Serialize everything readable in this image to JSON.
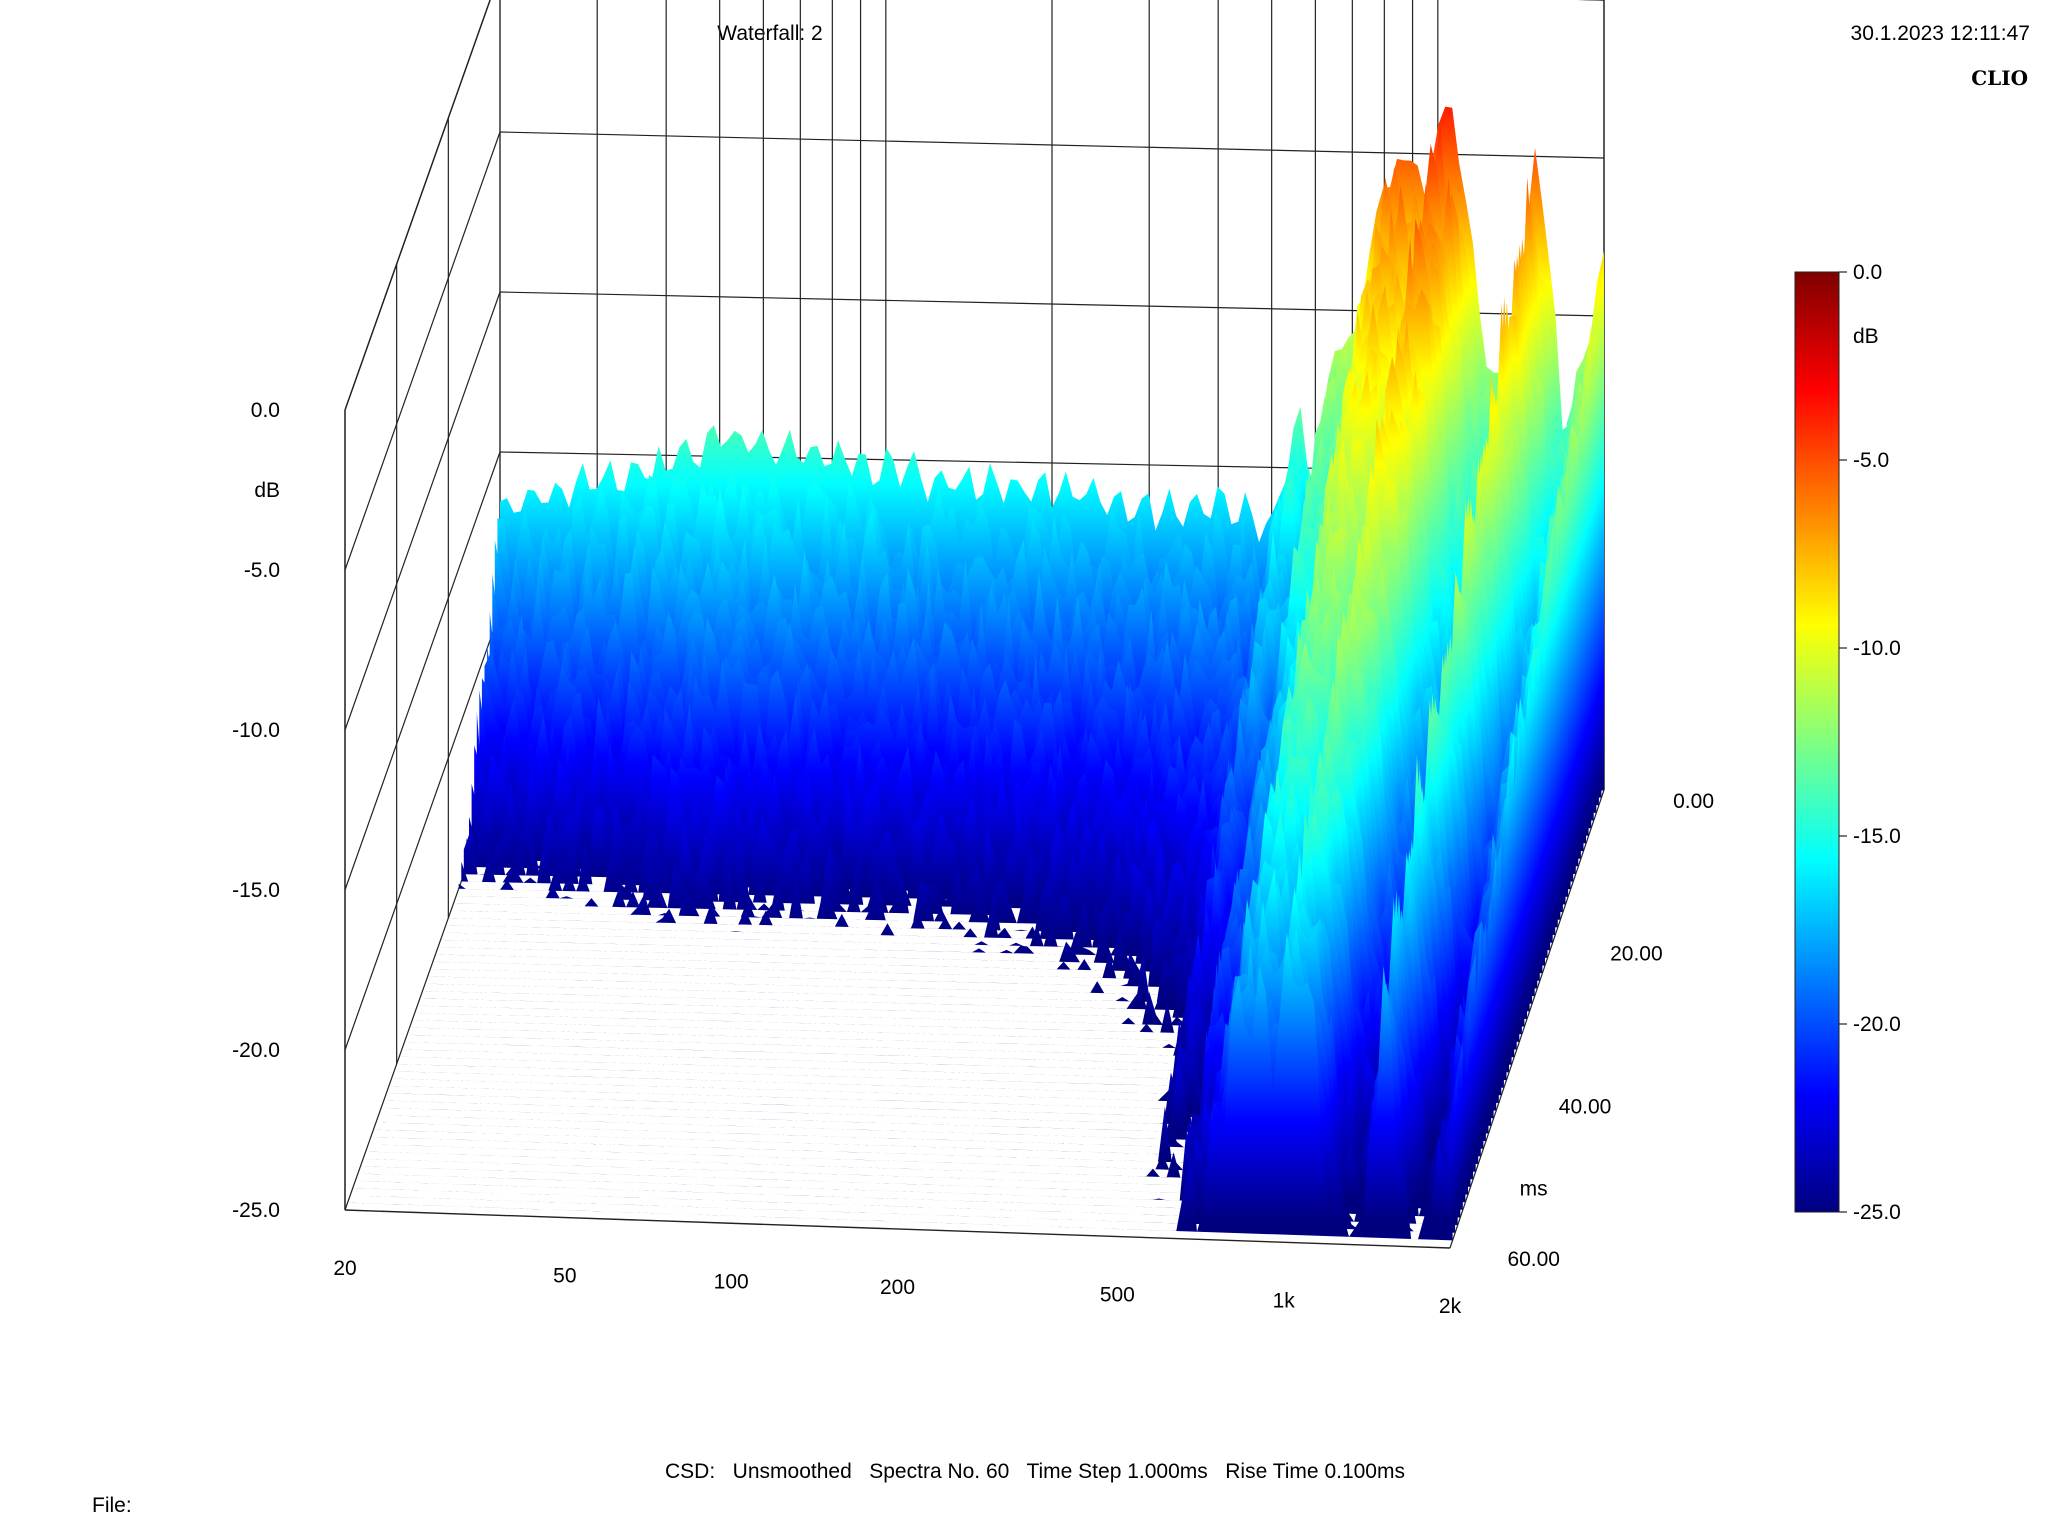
{
  "header": {
    "title": "Waterfall: 2",
    "timestamp": "30.1.2023 12:11:47",
    "brand": "CLIO"
  },
  "footer": {
    "text": "CSD:   Unsmoothed   Spectra No. 60   Time Step 1.000ms   Rise Time 0.100ms",
    "file_label": "File:"
  },
  "chart_data": {
    "type": "waterfall",
    "z_unit": "dB",
    "z_ticks": [
      "0.0",
      "-5.0",
      "-10.0",
      "-15.0",
      "-20.0",
      "-25.0"
    ],
    "zlim": [
      -25,
      0
    ],
    "x_unit": "Hz",
    "x_scale": "log",
    "x_ticks": [
      "20",
      "50",
      "100",
      "200",
      "500",
      "1k",
      "2k"
    ],
    "xlim": [
      20,
      2000
    ],
    "t_unit": "ms",
    "t_ticks": [
      "0.00",
      "20.00",
      "40.00",
      "60.00"
    ],
    "tlim": [
      0,
      60
    ],
    "spectra_count": 60,
    "time_step_ms": 1.0,
    "colorbar": {
      "unit": "dB",
      "ticks": [
        "0.0",
        "-5.0",
        "-10.0",
        "-15.0",
        "-20.0",
        "-25.0"
      ],
      "colors": [
        "#00007f",
        "#0000ff",
        "#0080ff",
        "#00ffff",
        "#80ff80",
        "#ffff00",
        "#ff8000",
        "#ff0000",
        "#7f0000"
      ]
    },
    "initial_spectrum": {
      "freq_hz": [
        20,
        25,
        30,
        40,
        50,
        70,
        100,
        150,
        200,
        300,
        400,
        500,
        560,
        600,
        650,
        700,
        800,
        900,
        950,
        1000,
        1100,
        1200,
        1300,
        1400,
        1500,
        1600,
        1700,
        1800,
        2000
      ],
      "level_db": [
        -16.5,
        -16,
        -15.5,
        -15,
        -14,
        -14.5,
        -15,
        -15.5,
        -15.5,
        -16,
        -16,
        -16.5,
        -13,
        -15,
        -10.5,
        -11,
        -5.5,
        -4.5,
        -6.5,
        -3,
        -4.5,
        -10.5,
        -12,
        -10.5,
        -4,
        -8.5,
        -13.5,
        -11.5,
        -8
      ]
    },
    "decay_ms": 20
  }
}
